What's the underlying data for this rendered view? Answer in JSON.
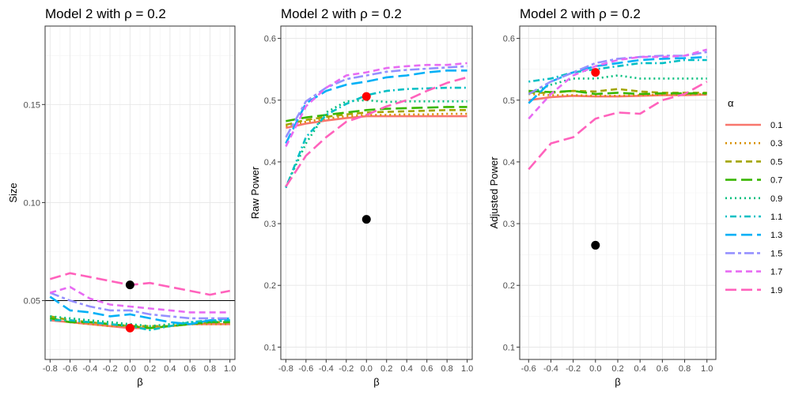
{
  "chart_data": [
    {
      "type": "line",
      "title": "Model 2 with ρ = 0.2",
      "xlabel": "β",
      "ylabel": "Size",
      "xlim": [
        -0.85,
        1.05
      ],
      "ylim": [
        0.02,
        0.19
      ],
      "xticks": [
        -0.8,
        -0.6,
        -0.4,
        -0.2,
        0.0,
        0.2,
        0.4,
        0.6,
        0.8,
        1.0
      ],
      "xtick_labels": [
        "-0.8",
        "-0.6",
        "-0.4",
        "-0.2",
        "0.0",
        "0.2",
        "0.4",
        "0.6",
        "0.8",
        "1.0"
      ],
      "yticks": [
        0.05,
        0.1,
        0.15
      ],
      "ytick_labels": [
        "0.05",
        "0.10",
        "0.15"
      ],
      "hline": 0.05,
      "x": [
        -0.8,
        -0.6,
        -0.4,
        -0.2,
        0.0,
        0.2,
        0.4,
        0.6,
        0.8,
        1.0
      ],
      "series": [
        {
          "name": "0.1",
          "values": [
            0.04,
            0.039,
            0.038,
            0.037,
            0.036,
            0.036,
            0.037,
            0.038,
            0.038,
            0.038
          ]
        },
        {
          "name": "0.3",
          "values": [
            0.041,
            0.039,
            0.038,
            0.037,
            0.037,
            0.036,
            0.037,
            0.038,
            0.038,
            0.038
          ]
        },
        {
          "name": "0.5",
          "values": [
            0.042,
            0.04,
            0.039,
            0.038,
            0.037,
            0.037,
            0.037,
            0.038,
            0.039,
            0.039
          ]
        },
        {
          "name": "0.7",
          "values": [
            0.041,
            0.039,
            0.039,
            0.038,
            0.037,
            0.036,
            0.037,
            0.038,
            0.039,
            0.039
          ]
        },
        {
          "name": "0.9",
          "values": [
            0.042,
            0.041,
            0.04,
            0.039,
            0.038,
            0.037,
            0.038,
            0.039,
            0.039,
            0.04
          ]
        },
        {
          "name": "1.1",
          "values": [
            0.04,
            0.04,
            0.039,
            0.038,
            0.037,
            0.035,
            0.037,
            0.039,
            0.04,
            0.04
          ]
        },
        {
          "name": "1.3",
          "values": [
            0.052,
            0.045,
            0.044,
            0.042,
            0.043,
            0.041,
            0.039,
            0.038,
            0.04,
            0.041
          ]
        },
        {
          "name": "1.5",
          "values": [
            0.054,
            0.05,
            0.047,
            0.045,
            0.045,
            0.043,
            0.042,
            0.041,
            0.041,
            0.041
          ]
        },
        {
          "name": "1.7",
          "values": [
            0.054,
            0.057,
            0.051,
            0.048,
            0.047,
            0.046,
            0.045,
            0.044,
            0.044,
            0.044
          ]
        },
        {
          "name": "1.9",
          "values": [
            0.061,
            0.064,
            0.062,
            0.06,
            0.058,
            0.059,
            0.057,
            0.055,
            0.053,
            0.055
          ]
        }
      ],
      "points": [
        {
          "x": 0.0,
          "y": 0.058,
          "color": "#000000"
        },
        {
          "x": 0.0,
          "y": 0.036,
          "color": "#ff0000"
        }
      ]
    },
    {
      "type": "line",
      "title": "Model 2 with ρ = 0.2",
      "xlabel": "β",
      "ylabel": "Raw Power",
      "xlim": [
        -0.85,
        1.05
      ],
      "ylim": [
        0.08,
        0.62
      ],
      "xticks": [
        -0.8,
        -0.6,
        -0.4,
        -0.2,
        0.0,
        0.2,
        0.4,
        0.6,
        0.8,
        1.0
      ],
      "xtick_labels": [
        "-0.8",
        "-0.6",
        "-0.4",
        "-0.2",
        "0.0",
        "0.2",
        "0.4",
        "0.6",
        "0.8",
        "1.0"
      ],
      "yticks": [
        0.1,
        0.2,
        0.3,
        0.4,
        0.5,
        0.6
      ],
      "ytick_labels": [
        "0.1",
        "0.2",
        "0.3",
        "0.4",
        "0.5",
        "0.6"
      ],
      "x": [
        -0.8,
        -0.6,
        -0.4,
        -0.2,
        0.0,
        0.2,
        0.4,
        0.6,
        0.8,
        1.0
      ],
      "series": [
        {
          "name": "0.1",
          "values": [
            0.455,
            0.462,
            0.467,
            0.471,
            0.474,
            0.474,
            0.474,
            0.474,
            0.474,
            0.474
          ]
        },
        {
          "name": "0.3",
          "values": [
            0.458,
            0.465,
            0.47,
            0.474,
            0.476,
            0.476,
            0.477,
            0.477,
            0.478,
            0.478
          ]
        },
        {
          "name": "0.5",
          "values": [
            0.46,
            0.468,
            0.473,
            0.477,
            0.48,
            0.481,
            0.482,
            0.483,
            0.484,
            0.484
          ]
        },
        {
          "name": "0.7",
          "values": [
            0.466,
            0.472,
            0.476,
            0.48,
            0.484,
            0.486,
            0.487,
            0.488,
            0.489,
            0.489
          ]
        },
        {
          "name": "0.9",
          "values": [
            0.36,
            0.43,
            0.48,
            0.498,
            0.5,
            0.497,
            0.498,
            0.498,
            0.498,
            0.498
          ]
        },
        {
          "name": "1.1",
          "values": [
            0.358,
            0.44,
            0.476,
            0.494,
            0.508,
            0.515,
            0.518,
            0.519,
            0.52,
            0.52
          ]
        },
        {
          "name": "1.3",
          "values": [
            0.43,
            0.495,
            0.515,
            0.525,
            0.53,
            0.537,
            0.54,
            0.545,
            0.548,
            0.548
          ]
        },
        {
          "name": "1.5",
          "values": [
            0.44,
            0.498,
            0.52,
            0.534,
            0.54,
            0.546,
            0.549,
            0.551,
            0.553,
            0.555
          ]
        },
        {
          "name": "1.7",
          "values": [
            0.425,
            0.49,
            0.52,
            0.54,
            0.545,
            0.552,
            0.555,
            0.557,
            0.557,
            0.56
          ]
        },
        {
          "name": "1.9",
          "values": [
            0.36,
            0.41,
            0.44,
            0.465,
            0.476,
            0.49,
            0.5,
            0.515,
            0.528,
            0.537
          ]
        }
      ],
      "points": [
        {
          "x": 0.0,
          "y": 0.307,
          "color": "#000000"
        },
        {
          "x": 0.0,
          "y": 0.506,
          "color": "#ff0000"
        }
      ]
    },
    {
      "type": "line",
      "title": "Model 2 with ρ = 0.2",
      "xlabel": "β",
      "ylabel": "Adjusted Power",
      "xlim": [
        -0.68,
        1.08
      ],
      "ylim": [
        0.08,
        0.62
      ],
      "xticks": [
        -0.6,
        -0.4,
        -0.2,
        0.0,
        0.2,
        0.4,
        0.6,
        0.8,
        1.0
      ],
      "xtick_labels": [
        "-0.6",
        "-0.4",
        "-0.2",
        "0.0",
        "0.2",
        "0.4",
        "0.6",
        "0.8",
        "1.0"
      ],
      "yticks": [
        0.1,
        0.2,
        0.3,
        0.4,
        0.5,
        0.6
      ],
      "ytick_labels": [
        "0.1",
        "0.2",
        "0.3",
        "0.4",
        "0.5",
        "0.6"
      ],
      "x": [
        -0.6,
        -0.4,
        -0.2,
        0.0,
        0.2,
        0.4,
        0.6,
        0.8,
        1.0
      ],
      "series": [
        {
          "name": "0.1",
          "values": [
            0.5,
            0.505,
            0.507,
            0.506,
            0.506,
            0.507,
            0.508,
            0.508,
            0.509
          ]
        },
        {
          "name": "0.3",
          "values": [
            0.51,
            0.508,
            0.508,
            0.507,
            0.507,
            0.508,
            0.509,
            0.509,
            0.51
          ]
        },
        {
          "name": "0.5",
          "values": [
            0.512,
            0.512,
            0.515,
            0.514,
            0.518,
            0.514,
            0.512,
            0.512,
            0.512
          ]
        },
        {
          "name": "0.7",
          "values": [
            0.515,
            0.513,
            0.515,
            0.51,
            0.512,
            0.51,
            0.511,
            0.511,
            0.511
          ]
        },
        {
          "name": "0.9",
          "values": [
            0.51,
            0.525,
            0.535,
            0.535,
            0.54,
            0.535,
            0.535,
            0.535,
            0.535
          ]
        },
        {
          "name": "1.1",
          "values": [
            0.53,
            0.535,
            0.545,
            0.55,
            0.555,
            0.56,
            0.56,
            0.565,
            0.565
          ]
        },
        {
          "name": "1.3",
          "values": [
            0.495,
            0.53,
            0.545,
            0.555,
            0.56,
            0.565,
            0.567,
            0.568,
            0.57
          ]
        },
        {
          "name": "1.5",
          "values": [
            0.51,
            0.53,
            0.545,
            0.56,
            0.567,
            0.57,
            0.572,
            0.572,
            0.578
          ]
        },
        {
          "name": "1.7",
          "values": [
            0.47,
            0.51,
            0.54,
            0.555,
            0.565,
            0.57,
            0.57,
            0.572,
            0.582
          ]
        },
        {
          "name": "1.9",
          "values": [
            0.388,
            0.43,
            0.44,
            0.47,
            0.48,
            0.478,
            0.5,
            0.51,
            0.53
          ]
        }
      ],
      "points": [
        {
          "x": 0.0,
          "y": 0.265,
          "color": "#000000"
        },
        {
          "x": 0.0,
          "y": 0.545,
          "color": "#ff0000"
        }
      ]
    }
  ],
  "legend": {
    "title": "α",
    "position": "right",
    "items": [
      {
        "label": "0.1",
        "color": "#F8766D",
        "dash": "solid"
      },
      {
        "label": "0.3",
        "color": "#D89000",
        "dash": "dotted"
      },
      {
        "label": "0.5",
        "color": "#A3A500",
        "dash": "dashed"
      },
      {
        "label": "0.7",
        "color": "#39B600",
        "dash": "longdash"
      },
      {
        "label": "0.9",
        "color": "#00BF7D",
        "dash": "dotted"
      },
      {
        "label": "1.1",
        "color": "#00BFC4",
        "dash": "dotdash"
      },
      {
        "label": "1.3",
        "color": "#00B0F6",
        "dash": "longdash"
      },
      {
        "label": "1.5",
        "color": "#9590FF",
        "dash": "twodash"
      },
      {
        "label": "1.7",
        "color": "#E76BF3",
        "dash": "dashed"
      },
      {
        "label": "1.9",
        "color": "#FF62BC",
        "dash": "longdash"
      }
    ]
  }
}
